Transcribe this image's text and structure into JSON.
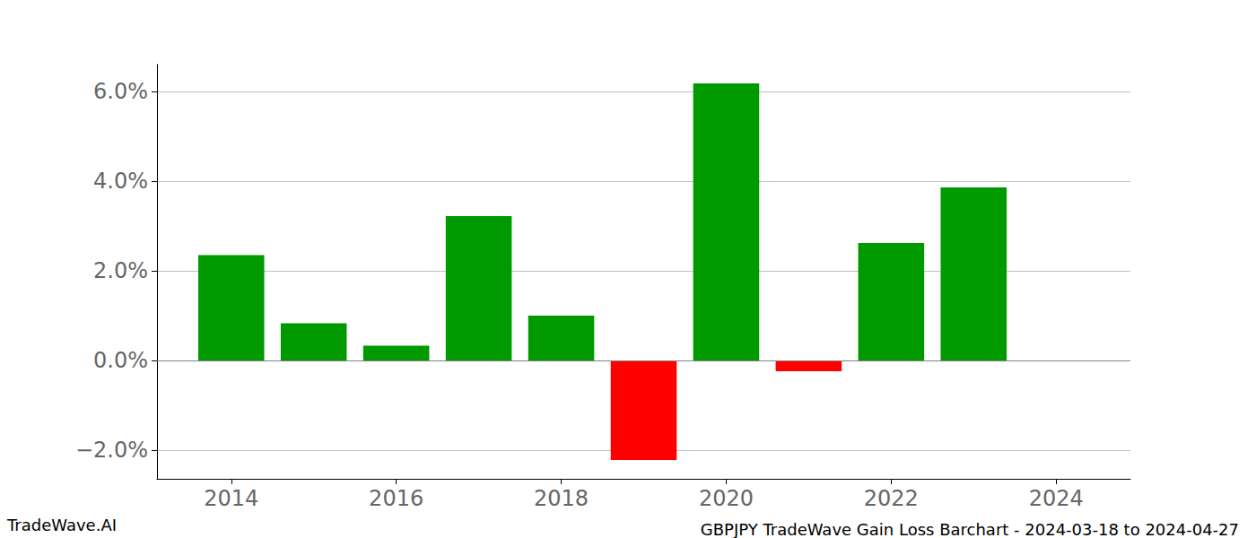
{
  "chart_data": {
    "type": "bar",
    "title": "GBPJPY TradeWave Gain Loss Barchart - 2024-03-18 to 2024-04-27",
    "annotations": [
      "TradeWave.AI"
    ],
    "x": [
      2014,
      2015,
      2016,
      2017,
      2018,
      2019,
      2020,
      2021,
      2022,
      2023
    ],
    "values": [
      2.35,
      0.83,
      0.33,
      3.22,
      1.0,
      -2.22,
      6.18,
      -0.24,
      2.62,
      3.86
    ],
    "colors": [
      "#009900",
      "#009900",
      "#009900",
      "#009900",
      "#009900",
      "#ff0000",
      "#009900",
      "#ff0000",
      "#009900",
      "#009900"
    ],
    "xlim": [
      2013.1,
      2024.9
    ],
    "xticks": [
      2014,
      2016,
      2018,
      2020,
      2022,
      2024
    ],
    "ylim": [
      -2.64,
      6.6
    ],
    "yticks": [
      {
        "value": -2,
        "label": "−2.0%"
      },
      {
        "value": 0,
        "label": "0.0%"
      },
      {
        "value": 2,
        "label": "2.0%"
      },
      {
        "value": 4,
        "label": "4.0%"
      },
      {
        "value": 6,
        "label": "6.0%"
      }
    ],
    "grid": true
  }
}
